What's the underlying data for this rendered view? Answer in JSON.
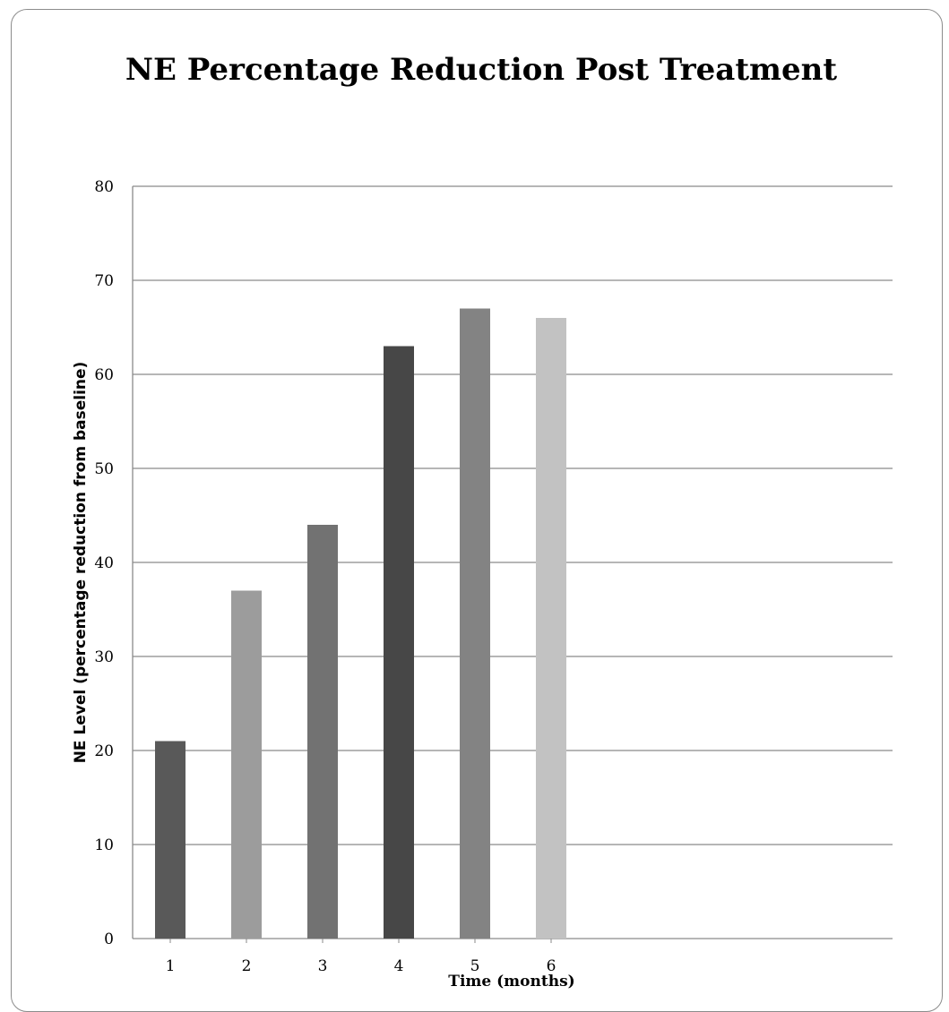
{
  "chart_data": {
    "type": "bar",
    "title": "NE Percentage Reduction Post Treatment",
    "xlabel": "Time (months)",
    "ylabel": "NE Level (percentage reduction  from baseline)",
    "categories": [
      "1",
      "2",
      "3",
      "4",
      "5",
      "6"
    ],
    "values": [
      21,
      37,
      44,
      63,
      67,
      66
    ],
    "colors": [
      "#595959",
      "#9c9c9c",
      "#727272",
      "#474747",
      "#838383",
      "#c2c2c2"
    ],
    "ylim": [
      0,
      80
    ],
    "yticks": [
      "0",
      "10",
      "20",
      "30",
      "40",
      "50",
      "60",
      "70",
      "80"
    ],
    "grid": true,
    "legend": "none"
  }
}
